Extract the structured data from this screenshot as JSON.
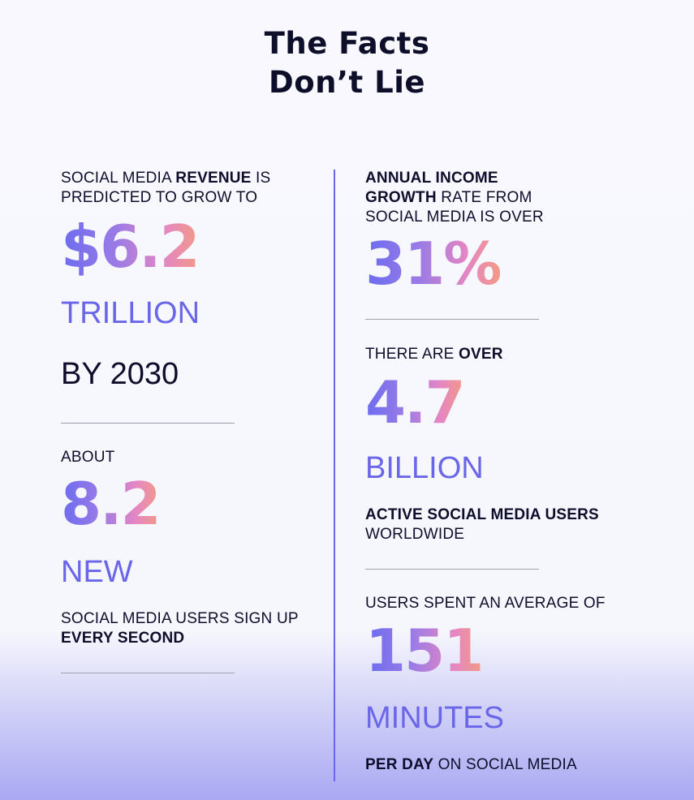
{
  "title": {
    "line1": "The Facts",
    "line2": "Don’t Lie"
  },
  "left": {
    "stat1": {
      "label_a": "SOCIAL MEDIA ",
      "label_b": "REVENUE",
      "label_c": " IS",
      "label_d": "PREDICTED TO GROW TO",
      "value": "$6.2",
      "unit": "TRILLION",
      "suffix": "BY 2030"
    },
    "stat2": {
      "label": "ABOUT",
      "value": "8.2",
      "unit": "NEW",
      "desc_a": "SOCIAL MEDIA USERS SIGN UP",
      "desc_b": "EVERY SECOND"
    }
  },
  "right": {
    "stat1": {
      "label_a": "ANNUAL INCOME",
      "label_b": "GROWTH",
      "label_c": " RATE FROM",
      "label_d": "SOCIAL MEDIA IS OVER",
      "value": "31%"
    },
    "stat2": {
      "label_a": "THERE ARE ",
      "label_b": "OVER",
      "value": "4.7",
      "unit": "BILLION",
      "desc_a": "ACTIVE SOCIAL MEDIA USERS",
      "desc_b": "WORLDWIDE"
    },
    "stat3": {
      "label": "USERS SPENT AN AVERAGE OF",
      "value": "151",
      "unit": "MINUTES",
      "desc_a": "PER DAY",
      "desc_b": " ON SOCIAL MEDIA"
    }
  },
  "colors": {
    "accent": "#6a66e9",
    "text": "#0e0e2c",
    "gradient_start": "#6b6cf0",
    "gradient_end": "#f39a86"
  }
}
